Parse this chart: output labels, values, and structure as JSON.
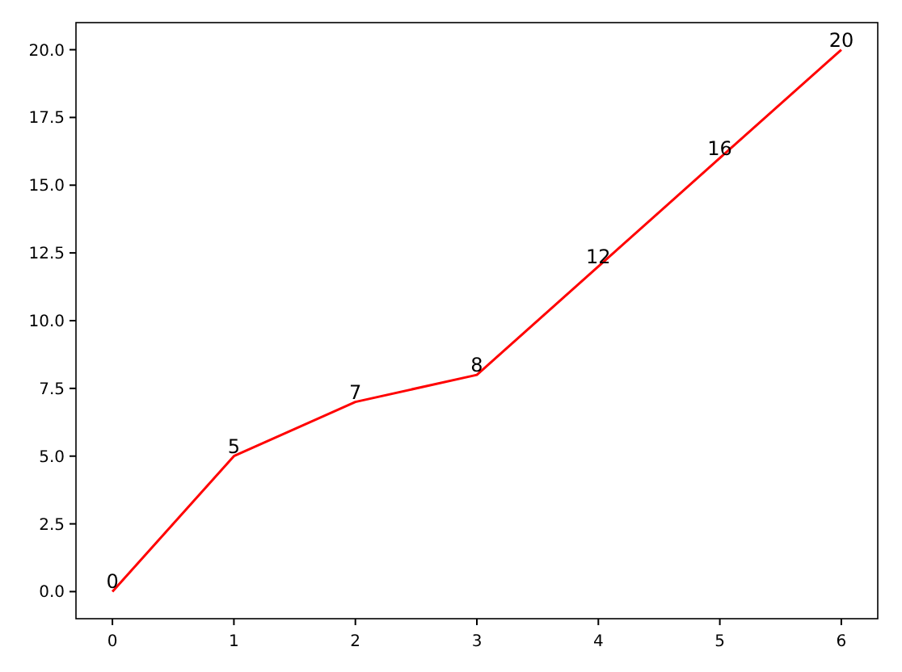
{
  "chart_data": {
    "type": "line",
    "x": [
      0,
      1,
      2,
      3,
      4,
      5,
      6
    ],
    "series": [
      {
        "color": "#ff0000",
        "values": [
          0,
          5,
          7,
          8,
          12,
          16,
          20
        ]
      }
    ],
    "xlim": [
      -0.3,
      6.3
    ],
    "ylim": [
      -1,
      21
    ],
    "xticks": [
      0,
      1,
      2,
      3,
      4,
      5,
      6
    ],
    "yticks": [
      {
        "value": 0,
        "label": "0.0"
      },
      {
        "value": 2.5,
        "label": "2.5"
      },
      {
        "value": 5,
        "label": "5.0"
      },
      {
        "value": 7.5,
        "label": "7.5"
      },
      {
        "value": 10,
        "label": "10.0"
      },
      {
        "value": 12.5,
        "label": "12.5"
      },
      {
        "value": 15,
        "label": "15.0"
      },
      {
        "value": 17.5,
        "label": "17.5"
      },
      {
        "value": 20,
        "label": "20.0"
      }
    ],
    "data_labels": true
  }
}
